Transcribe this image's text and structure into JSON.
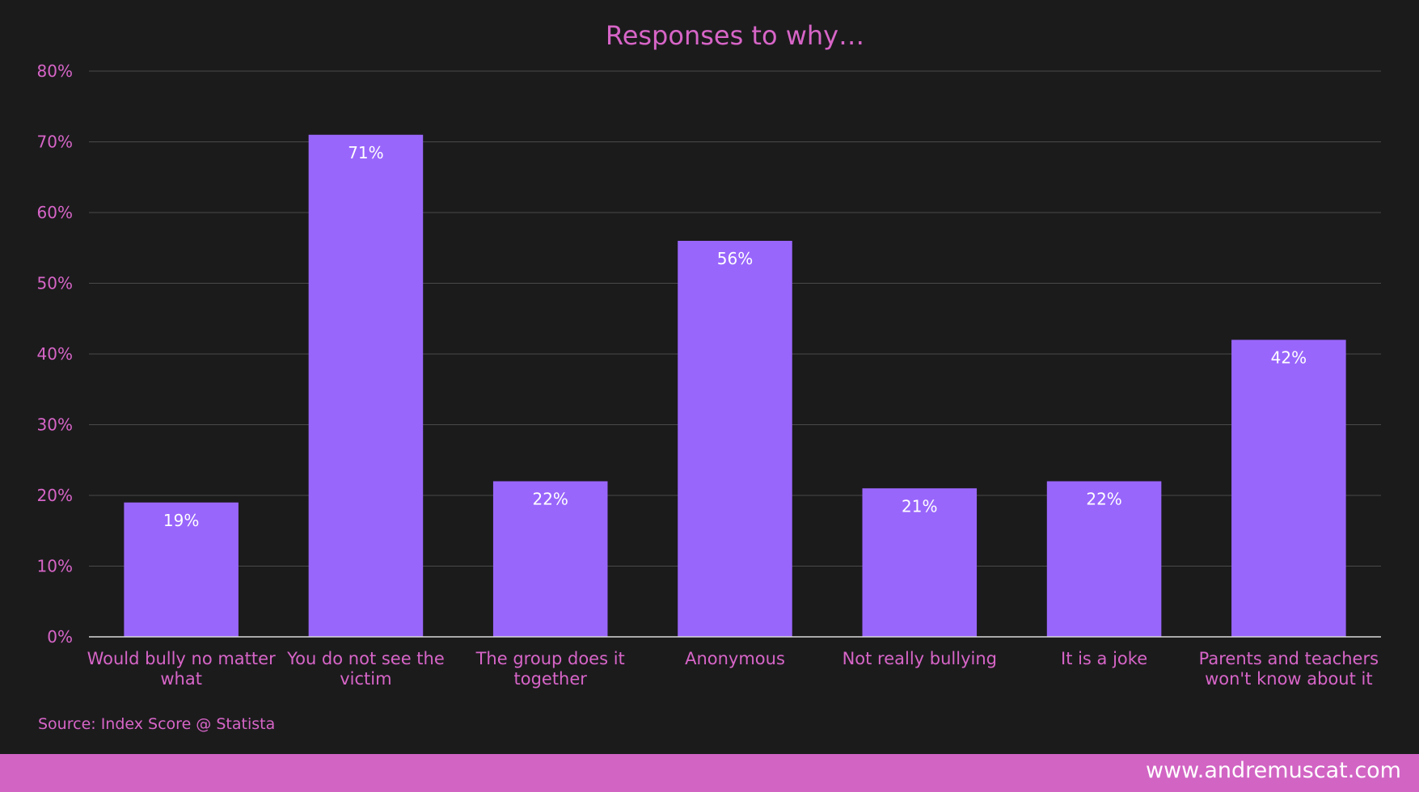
{
  "colors": {
    "background": "#1b1b1c",
    "bar": "#9966fb",
    "label_text": "#d765c7",
    "data_label": "#ffffff",
    "gridline": "#4a4a4a",
    "footer_band": "#d264c4"
  },
  "chart_data": {
    "type": "bar",
    "title": "Responses to why…",
    "xlabel": "",
    "ylabel": "",
    "ylim": [
      0,
      80
    ],
    "y_ticks": [
      "0%",
      "10%",
      "20%",
      "30%",
      "40%",
      "50%",
      "60%",
      "70%",
      "80%"
    ],
    "y_tick_values": [
      0,
      10,
      20,
      30,
      40,
      50,
      60,
      70,
      80
    ],
    "grid": true,
    "categories": [
      [
        "Would bully no matter",
        "what"
      ],
      [
        "You do not see the",
        "victim"
      ],
      [
        "The group does it",
        "together"
      ],
      [
        "Anonymous"
      ],
      [
        "Not really bullying"
      ],
      [
        "It is a joke"
      ],
      [
        "Parents and teachers",
        "won't know about it"
      ]
    ],
    "values": [
      19,
      71,
      22,
      56,
      21,
      22,
      42
    ],
    "data_labels": [
      "19%",
      "71%",
      "22%",
      "56%",
      "21%",
      "22%",
      "42%"
    ]
  },
  "source": "Source: Index Score @ Statista",
  "footer": {
    "url": "www.andremuscat.com"
  }
}
